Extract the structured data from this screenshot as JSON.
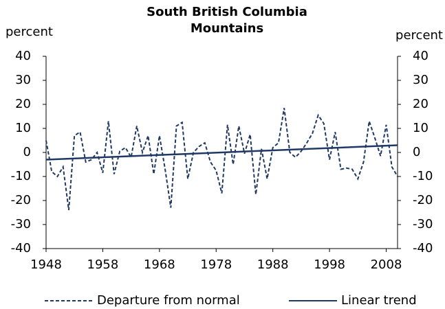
{
  "chart_data": {
    "type": "line",
    "title": "South British Columbia Mountains",
    "ylabel": "percent",
    "y2label": "percent",
    "xlim": [
      1948,
      2010
    ],
    "xticks": [
      1948,
      1958,
      1968,
      1978,
      1988,
      1998,
      2008
    ],
    "ylim": [
      -40,
      40
    ],
    "yticks": [
      -40,
      -30,
      -20,
      -10,
      0,
      10,
      20,
      30,
      40
    ],
    "y2lim": [
      -40,
      40
    ],
    "y2ticks": [
      -40,
      -30,
      -20,
      -10,
      0,
      10,
      20,
      30,
      40
    ],
    "grid": false,
    "legend": "bottom",
    "series": [
      {
        "name": "Departure from normal",
        "color": "#1f3864",
        "dashed": true,
        "x": [
          1948,
          1949,
          1950,
          1951,
          1952,
          1953,
          1954,
          1955,
          1956,
          1957,
          1958,
          1959,
          1960,
          1961,
          1962,
          1963,
          1964,
          1965,
          1966,
          1967,
          1968,
          1969,
          1970,
          1971,
          1972,
          1973,
          1974,
          1975,
          1976,
          1977,
          1978,
          1979,
          1980,
          1981,
          1982,
          1983,
          1984,
          1985,
          1986,
          1987,
          1988,
          1989,
          1990,
          1991,
          1992,
          1993,
          1994,
          1995,
          1996,
          1997,
          1998,
          1999,
          2000,
          2001,
          2002,
          2003,
          2004,
          2005,
          2006,
          2007,
          2008,
          2009,
          2010
        ],
        "values": [
          5,
          -8,
          -10,
          -6,
          -24,
          7,
          8.5,
          -4,
          -3,
          0,
          -8.5,
          13,
          -9,
          0.5,
          2,
          -2,
          11,
          0,
          7,
          -9,
          7,
          -7,
          -23,
          11,
          12.5,
          -11,
          0,
          2.5,
          4,
          -4,
          -7.5,
          -17,
          11.5,
          -5,
          11,
          -0.5,
          7.5,
          -17.5,
          1.5,
          -11,
          2,
          4,
          18.5,
          0,
          -2,
          0.5,
          4,
          8,
          15.5,
          12,
          -3,
          8.5,
          -7,
          -6.5,
          -7,
          -11,
          -4,
          13,
          6,
          -1.5,
          11.5,
          -6,
          -10
        ]
      },
      {
        "name": "Linear trend",
        "color": "#1f3864",
        "dashed": false,
        "x": [
          1948,
          2010
        ],
        "values": [
          -3,
          3
        ]
      }
    ]
  }
}
